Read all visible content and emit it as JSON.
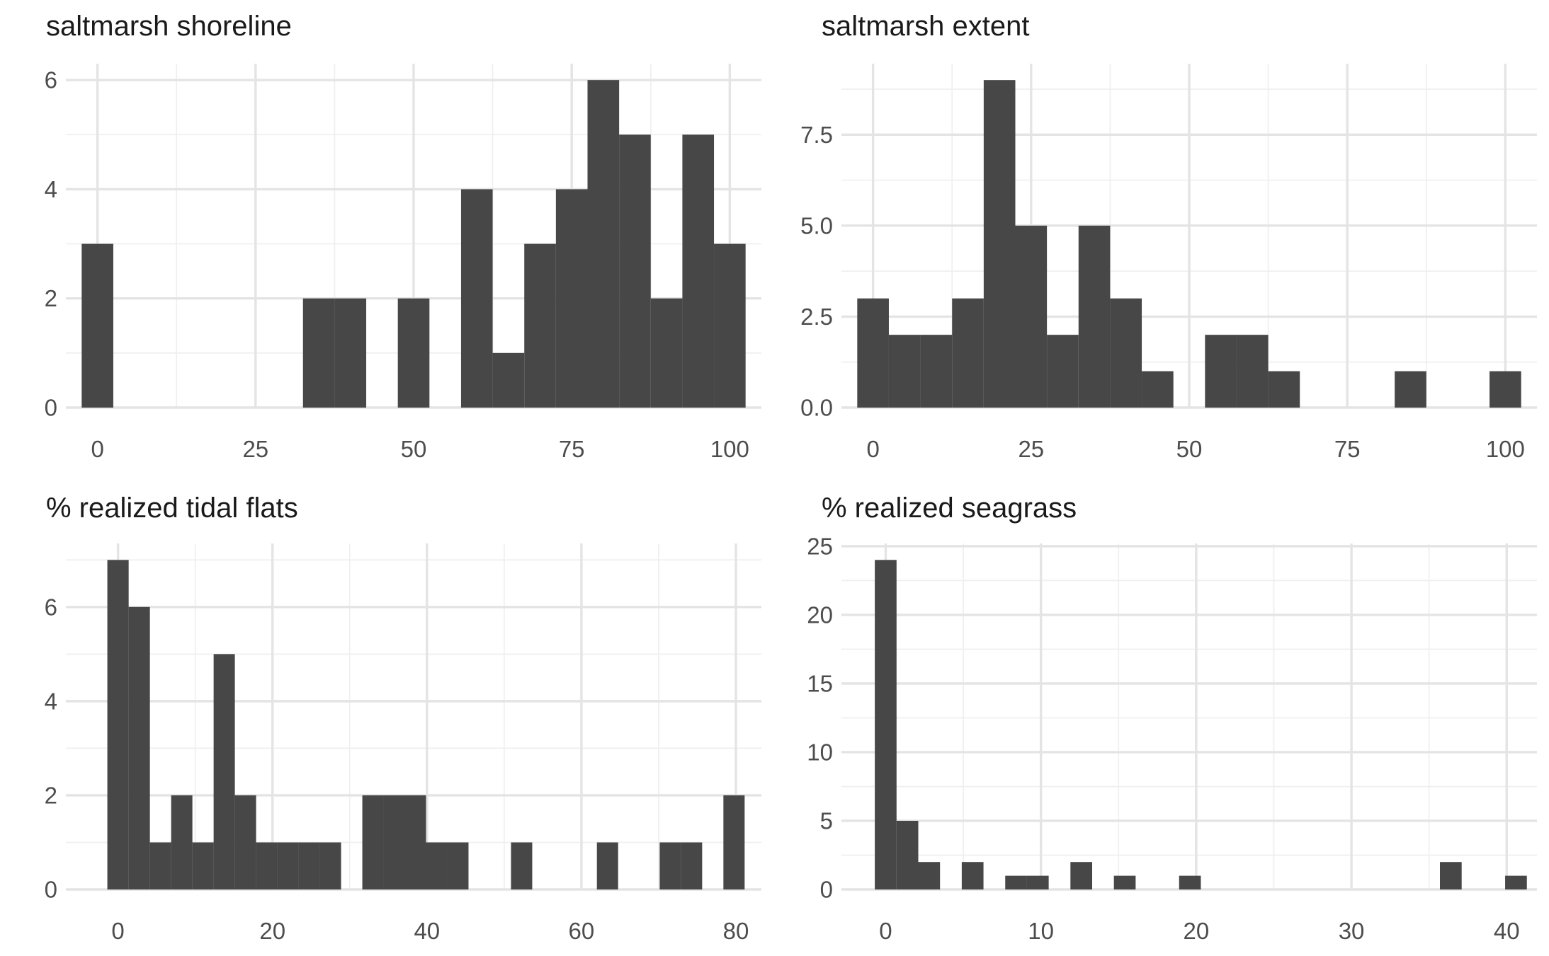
{
  "chart_data": [
    {
      "type": "bar",
      "title": "saltmarsh shoreline",
      "xlabel": "",
      "ylabel": "",
      "xlim": [
        -5,
        105
      ],
      "ylim": [
        0,
        6.3
      ],
      "x_major_ticks": [
        0,
        25,
        50,
        75,
        100
      ],
      "x_minor_ticks": [
        12.5,
        37.5,
        62.5,
        87.5
      ],
      "y_major_ticks": [
        0,
        2,
        4,
        6
      ],
      "y_minor_ticks": [
        1,
        3,
        5
      ],
      "bins": [
        [
          -2.5,
          2.5,
          3
        ],
        [
          32.5,
          37.5,
          2
        ],
        [
          37.5,
          42.5,
          2
        ],
        [
          47.5,
          52.5,
          2
        ],
        [
          57.5,
          62.5,
          4
        ],
        [
          62.5,
          67.5,
          1
        ],
        [
          67.5,
          72.5,
          3
        ],
        [
          72.5,
          77.5,
          4
        ],
        [
          77.5,
          82.5,
          6
        ],
        [
          82.5,
          87.5,
          5
        ],
        [
          87.5,
          92.5,
          2
        ],
        [
          92.5,
          97.5,
          5
        ],
        [
          97.5,
          102.5,
          3
        ]
      ],
      "grid": true
    },
    {
      "type": "bar",
      "title": "saltmarsh extent",
      "xlabel": "",
      "ylabel": "",
      "xlim": [
        -5,
        105
      ],
      "ylim": [
        0,
        9.45
      ],
      "x_major_ticks": [
        0,
        25,
        50,
        75,
        100
      ],
      "x_minor_ticks": [
        12.5,
        37.5,
        62.5,
        87.5
      ],
      "y_major_ticks": [
        0,
        2.5,
        5,
        7.5
      ],
      "y_minor_ticks": [
        1.25,
        3.75,
        6.25,
        8.75
      ],
      "y_tick_labels": [
        "0.0",
        "2.5",
        "5.0",
        "7.5"
      ],
      "bins": [
        [
          -2.5,
          2.5,
          3
        ],
        [
          2.5,
          7.5,
          2
        ],
        [
          7.5,
          12.5,
          2
        ],
        [
          12.5,
          17.5,
          3
        ],
        [
          17.5,
          22.5,
          9
        ],
        [
          22.5,
          27.5,
          5
        ],
        [
          27.5,
          32.5,
          2
        ],
        [
          32.5,
          37.5,
          5
        ],
        [
          37.5,
          42.5,
          3
        ],
        [
          42.5,
          47.5,
          1
        ],
        [
          52.5,
          57.5,
          2
        ],
        [
          57.5,
          62.5,
          2
        ],
        [
          62.5,
          67.5,
          1
        ],
        [
          82.5,
          87.5,
          1
        ],
        [
          97.5,
          102.5,
          1
        ]
      ],
      "grid": true
    },
    {
      "type": "bar",
      "title": "% realized tidal flats",
      "xlabel": "",
      "ylabel": "",
      "xlim": [
        -6.75,
        83.3
      ],
      "ylim": [
        0,
        7.35
      ],
      "x_major_ticks": [
        0,
        20,
        40,
        60,
        80
      ],
      "x_minor_ticks": [
        10,
        30,
        50,
        70
      ],
      "y_major_ticks": [
        0,
        2,
        4,
        6
      ],
      "y_minor_ticks": [
        1,
        3,
        5,
        7
      ],
      "bins": [
        [
          -1.38,
          1.38,
          7
        ],
        [
          1.38,
          4.13,
          6
        ],
        [
          4.13,
          6.88,
          1
        ],
        [
          6.88,
          9.63,
          2
        ],
        [
          9.63,
          12.38,
          1
        ],
        [
          12.38,
          15.13,
          5
        ],
        [
          15.13,
          17.88,
          2
        ],
        [
          17.88,
          20.63,
          1
        ],
        [
          20.63,
          23.38,
          1
        ],
        [
          23.38,
          26.13,
          1
        ],
        [
          26.13,
          28.88,
          1
        ],
        [
          31.63,
          34.38,
          2
        ],
        [
          34.38,
          37.13,
          2
        ],
        [
          37.13,
          39.88,
          2
        ],
        [
          39.88,
          42.63,
          1
        ],
        [
          42.63,
          45.38,
          1
        ],
        [
          50.88,
          53.63,
          1
        ],
        [
          62.0,
          64.75,
          1
        ],
        [
          70.13,
          72.88,
          1
        ],
        [
          72.88,
          75.63,
          1
        ],
        [
          78.38,
          81.13,
          2
        ]
      ],
      "grid": true
    },
    {
      "type": "bar",
      "title": "% realized seagrass",
      "xlabel": "",
      "ylabel": "",
      "xlim": [
        -2.85,
        41.95
      ],
      "ylim": [
        0,
        25.2
      ],
      "x_major_ticks": [
        0,
        10,
        20,
        30,
        40
      ],
      "x_minor_ticks": [
        5,
        15,
        25,
        35
      ],
      "y_major_ticks": [
        0,
        5,
        10,
        15,
        20,
        25
      ],
      "y_minor_ticks": [
        2.5,
        7.5,
        12.5,
        17.5,
        22.5
      ],
      "bins": [
        [
          -0.7,
          0.7,
          24
        ],
        [
          0.7,
          2.1,
          5
        ],
        [
          2.1,
          3.5,
          2
        ],
        [
          4.9,
          6.3,
          2
        ],
        [
          7.7,
          9.1,
          1
        ],
        [
          9.1,
          10.5,
          1
        ],
        [
          11.9,
          13.3,
          2
        ],
        [
          14.7,
          16.1,
          1
        ],
        [
          18.9,
          20.3,
          1
        ],
        [
          35.7,
          37.1,
          2
        ],
        [
          39.9,
          41.3,
          1
        ]
      ],
      "grid": true
    }
  ]
}
